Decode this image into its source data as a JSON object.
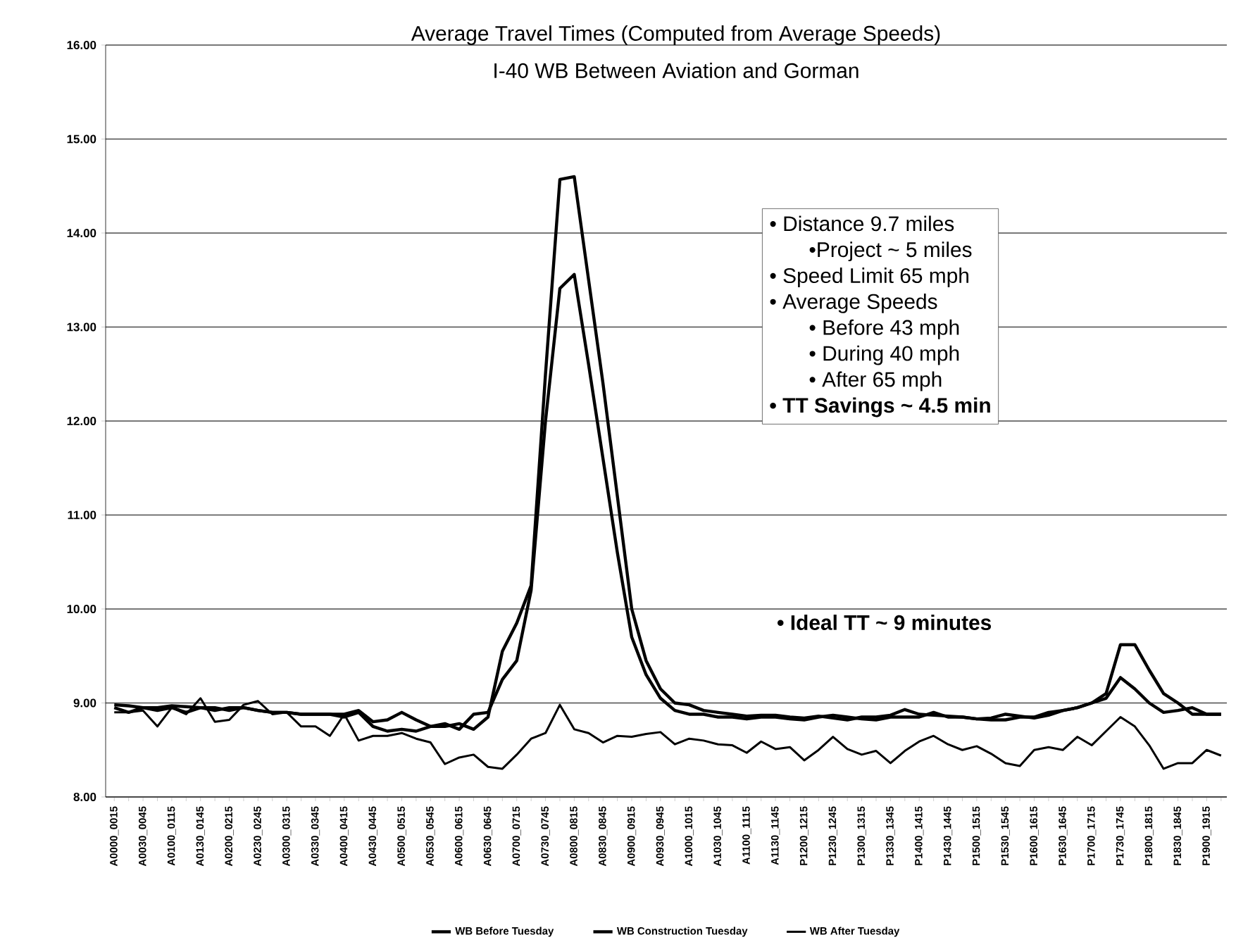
{
  "chart_data": {
    "type": "line",
    "title": "Average Travel Times (Computed from Average Speeds)",
    "subtitle": "I-40 WB Between Aviation and Gorman",
    "categories": [
      "A0000_0015",
      null,
      "A0030_0045",
      null,
      "A0100_0115",
      null,
      "A0130_0145",
      null,
      "A0200_0215",
      null,
      "A0230_0245",
      null,
      "A0300_0315",
      null,
      "A0330_0345",
      null,
      "A0400_0415",
      null,
      "A0430_0445",
      null,
      "A0500_0515",
      null,
      "A0530_0545",
      null,
      "A0600_0615",
      null,
      "A0630_0645",
      null,
      "A0700_0715",
      null,
      "A0730_0745",
      null,
      "A0800_0815",
      null,
      "A0830_0845",
      null,
      "A0900_0915",
      null,
      "A0930_0945",
      null,
      "A1000_1015",
      null,
      "A1030_1045",
      null,
      "A1100_1115",
      null,
      "A1130_1145",
      null,
      "P1200_1215",
      null,
      "P1230_1245",
      null,
      "P1300_1315",
      null,
      "P1330_1345",
      null,
      "P1400_1415",
      null,
      "P1430_1445",
      null,
      "P1500_1515",
      null,
      "P1530_1545",
      null,
      "P1600_1615",
      null,
      "P1630_1645",
      null,
      "P1700_1715",
      null,
      "P1730_1745",
      null,
      "P1800_1815",
      null,
      "P1830_1845",
      null,
      "P1900_1915",
      null
    ],
    "series": [
      {
        "name": "WB Before Tuesday",
        "color": "#000000",
        "values": [
          8.95,
          8.9,
          8.95,
          8.92,
          8.95,
          8.9,
          8.95,
          8.92,
          8.95,
          8.95,
          8.92,
          8.9,
          8.9,
          8.88,
          8.88,
          8.88,
          8.85,
          8.9,
          8.75,
          8.7,
          8.72,
          8.7,
          8.75,
          8.78,
          8.72,
          8.88,
          8.9,
          9.25,
          9.45,
          10.2,
          12.0,
          13.41,
          13.56,
          12.6,
          11.6,
          10.6,
          9.7,
          9.3,
          9.05,
          8.92,
          8.88,
          8.88,
          8.85,
          8.85,
          8.83,
          8.85,
          8.85,
          8.83,
          8.82,
          8.85,
          8.87,
          8.85,
          8.83,
          8.82,
          8.85,
          8.85,
          8.85,
          8.9,
          8.85,
          8.85,
          8.83,
          8.82,
          8.82,
          8.85,
          8.85,
          8.9,
          8.92,
          8.95,
          9.0,
          9.05,
          9.27,
          9.15,
          9.0,
          8.9,
          8.92,
          8.95,
          8.88,
          8.88
        ]
      },
      {
        "name": "WB Construction Tuesday",
        "color": "#000000",
        "values": [
          8.98,
          8.97,
          8.95,
          8.95,
          8.97,
          8.96,
          8.95,
          8.95,
          8.92,
          8.95,
          8.92,
          8.9,
          8.9,
          8.88,
          8.88,
          8.88,
          8.88,
          8.92,
          8.8,
          8.82,
          8.9,
          8.82,
          8.75,
          8.75,
          8.78,
          8.72,
          8.85,
          9.55,
          9.85,
          10.25,
          12.5,
          14.57,
          14.6,
          13.5,
          12.4,
          11.2,
          10.0,
          9.45,
          9.15,
          9.0,
          8.98,
          8.92,
          8.9,
          8.88,
          8.86,
          8.87,
          8.87,
          8.85,
          8.84,
          8.86,
          8.84,
          8.82,
          8.85,
          8.85,
          8.87,
          8.93,
          8.88,
          8.87,
          8.86,
          8.85,
          8.83,
          8.84,
          8.88,
          8.86,
          8.84,
          8.87,
          8.92,
          8.95,
          9.0,
          9.1,
          9.62,
          9.62,
          9.35,
          9.1,
          9.0,
          8.88,
          8.88,
          8.88
        ]
      },
      {
        "name": "WB After Tuesday",
        "color": "#000000",
        "values": [
          8.9,
          8.9,
          8.92,
          8.75,
          8.95,
          8.88,
          9.05,
          8.8,
          8.82,
          8.98,
          9.02,
          8.88,
          8.9,
          8.75,
          8.75,
          8.65,
          8.88,
          8.6,
          8.65,
          8.65,
          8.68,
          8.62,
          8.58,
          8.35,
          8.42,
          8.45,
          8.32,
          8.3,
          8.45,
          8.62,
          8.68,
          8.98,
          8.72,
          8.68,
          8.58,
          8.65,
          8.64,
          8.67,
          8.69,
          8.56,
          8.62,
          8.6,
          8.56,
          8.55,
          8.47,
          8.59,
          8.51,
          8.53,
          8.39,
          8.5,
          8.64,
          8.51,
          8.45,
          8.49,
          8.36,
          8.49,
          8.59,
          8.65,
          8.56,
          8.5,
          8.54,
          8.46,
          8.36,
          8.33,
          8.5,
          8.53,
          8.5,
          8.64,
          8.55,
          8.7,
          8.85,
          8.75,
          8.55,
          8.3,
          8.36,
          8.36,
          8.5,
          8.44
        ]
      }
    ],
    "ylim": [
      8,
      16
    ],
    "yticks": [
      {
        "value": 8,
        "label": "8.00"
      },
      {
        "value": 9,
        "label": "9.00"
      },
      {
        "value": 10,
        "label": "10.00"
      },
      {
        "value": 11,
        "label": "11.00"
      },
      {
        "value": 12,
        "label": "12.00"
      },
      {
        "value": 13,
        "label": "13.00"
      },
      {
        "value": 14,
        "label": "14.00"
      },
      {
        "value": 15,
        "label": "15.00"
      },
      {
        "value": 16,
        "label": "16.00"
      }
    ],
    "grid": "y",
    "legend": "bottom",
    "marker": "none",
    "line_style": "solid",
    "annotations": [
      "• Distance 9.7 miles",
      "•Project ~ 5 miles",
      "• Speed Limit 65 mph",
      "• Average Speeds",
      "• Before 43 mph",
      "• During 40 mph",
      "• After 65 mph",
      "• TT Savings ~ 4.5 min",
      "• Ideal TT ~ 9 minutes"
    ]
  }
}
